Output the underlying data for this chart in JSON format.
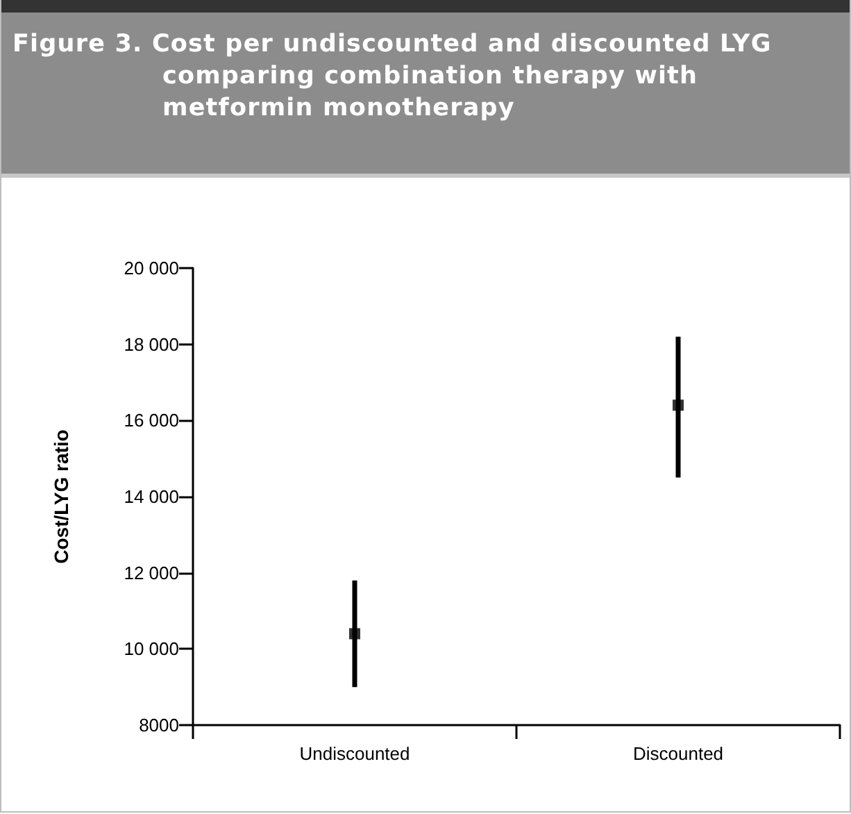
{
  "chart_data": {
    "type": "scatter",
    "title": "Figure 3. Cost per undiscounted and discounted LYG comparing combination therapy with metformin monotherapy",
    "ylabel": "Cost/LYG ratio",
    "categories": [
      "Undiscounted",
      "Discounted"
    ],
    "values": [
      10400,
      16400
    ],
    "errors": [
      [
        9000,
        11800
      ],
      [
        14500,
        18200
      ]
    ],
    "color": "#000000",
    "marker": "square",
    "ylim": [
      8000,
      20000
    ],
    "yticks": [
      8000,
      {
        "value": 10000,
        "label": "10 000"
      },
      {
        "value": 12000,
        "label": "12 000"
      },
      {
        "value": 14000,
        "label": "14 000"
      },
      {
        "value": 16000,
        "label": "16 000"
      },
      {
        "value": 18000,
        "label": "18 000"
      },
      {
        "value": 20000,
        "label": "20 000"
      }
    ],
    "grid": false
  }
}
